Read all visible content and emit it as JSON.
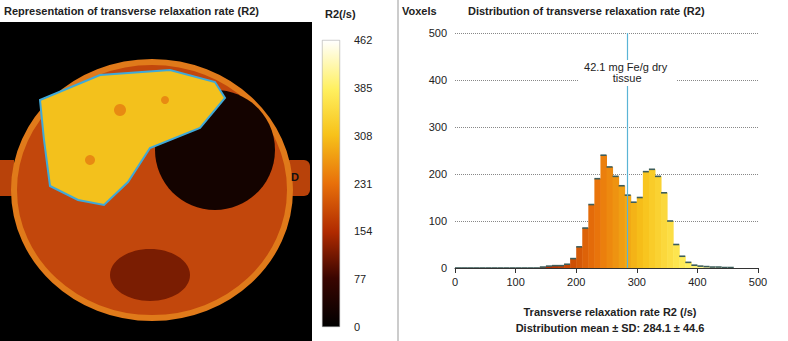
{
  "chart_data": [
    {
      "type": "image",
      "title": "Representation of transverse relaxation rate (R2)",
      "annotations": [
        "D"
      ],
      "colorbar": {
        "label": "R2(/s)",
        "range": [
          0,
          462
        ],
        "ticks": [
          0,
          77,
          154,
          231,
          308,
          385,
          462
        ]
      }
    },
    {
      "type": "histogram",
      "title": "Distribution of transverse relaxation rate (R2)",
      "ylabel": "Voxels",
      "xlabel": "Transverse relaxation rate R2 (/s)",
      "subtitle": "Distribution mean ± SD: 284.1 ± 44.6",
      "bins": [
        0,
        10,
        20,
        30,
        40,
        50,
        60,
        70,
        80,
        90,
        100,
        110,
        120,
        130,
        140,
        150,
        160,
        170,
        180,
        190,
        200,
        210,
        220,
        230,
        240,
        250,
        260,
        270,
        280,
        290,
        300,
        310,
        320,
        330,
        340,
        350,
        360,
        370,
        380,
        390,
        400,
        410,
        420,
        430,
        440,
        450,
        460
      ],
      "counts": [
        0,
        0,
        0,
        0,
        0,
        0,
        0,
        0,
        0,
        0,
        0,
        0,
        0,
        0,
        2,
        4,
        5,
        5,
        8,
        20,
        45,
        85,
        135,
        190,
        240,
        215,
        195,
        175,
        155,
        140,
        150,
        205,
        210,
        195,
        160,
        100,
        50,
        25,
        12,
        6,
        4,
        3,
        2,
        2,
        1,
        1
      ],
      "xlim": [
        0,
        500
      ],
      "xticks": [
        0,
        100,
        200,
        300,
        400,
        500
      ],
      "ylim": [
        0,
        500
      ],
      "yticks": [
        0,
        100,
        200,
        300,
        400,
        500
      ],
      "grid": true,
      "annotation": {
        "text": "42.1 mg Fe/g dry tissue",
        "x": 284.1
      }
    }
  ]
}
